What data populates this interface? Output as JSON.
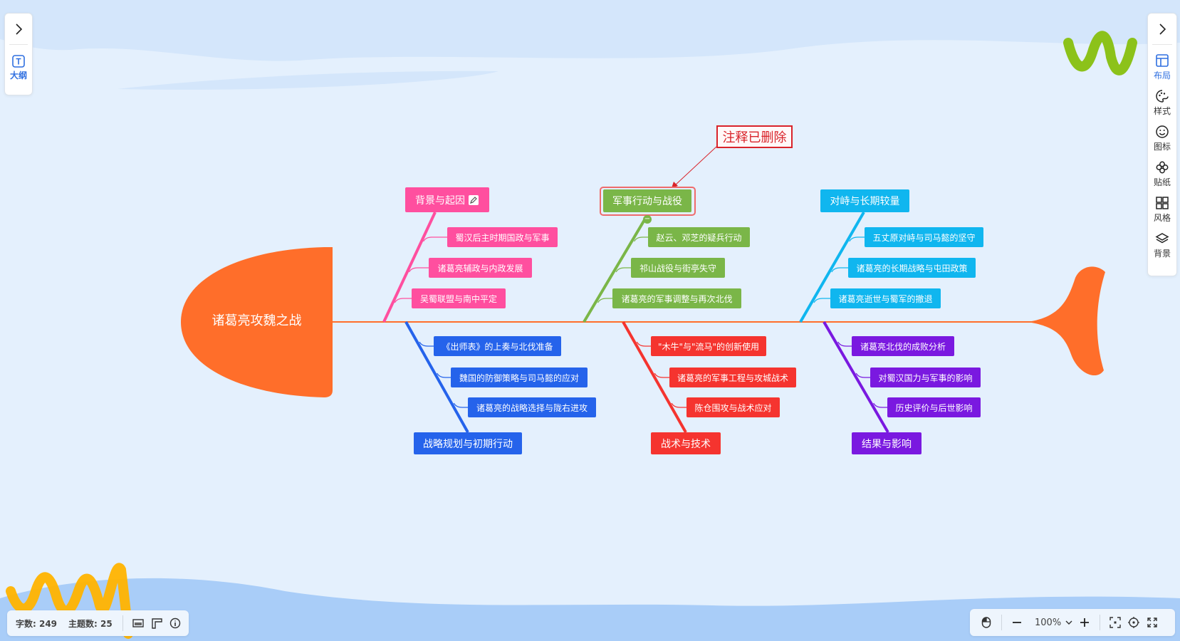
{
  "left_panel": {
    "expand_icon": "chevron-right-icon",
    "outline_label": "大纲",
    "outline_icon": "text-box-icon"
  },
  "right_panel": {
    "expand_icon": "chevron-right-icon",
    "items": [
      {
        "label": "布局",
        "icon": "layout-icon",
        "active": true
      },
      {
        "label": "样式",
        "icon": "palette-icon"
      },
      {
        "label": "图标",
        "icon": "smile-icon"
      },
      {
        "label": "贴纸",
        "icon": "flower-icon"
      },
      {
        "label": "风格",
        "icon": "grid-icon"
      },
      {
        "label": "背景",
        "icon": "layers-icon"
      }
    ]
  },
  "mindmap": {
    "root": "诸葛亮攻魏之战",
    "root_color": "#ff6e2a",
    "annotation": "注释已删除",
    "branches": [
      {
        "title": "背景与起因",
        "color": "#ff4f9f",
        "has_note_icon": true,
        "children": [
          "蜀汉后主时期国政与军事",
          "诸葛亮辅政与内政发展",
          "吴蜀联盟与南中平定"
        ]
      },
      {
        "title": "军事行动与战役",
        "color": "#7ab648",
        "selected": true,
        "children": [
          "赵云、邓芝的疑兵行动",
          "祁山战役与街亭失守",
          "诸葛亮的军事调整与再次北伐"
        ]
      },
      {
        "title": "对峙与长期较量",
        "color": "#10b6ef",
        "children": [
          "五丈原对峙与司马懿的坚守",
          "诸葛亮的长期战略与屯田政策",
          "诸葛亮逝世与蜀军的撤退"
        ]
      },
      {
        "title": "战略规划与初期行动",
        "color": "#2563eb",
        "children": [
          "《出师表》的上奏与北伐准备",
          "魏国的防御策略与司马懿的应对",
          "诸葛亮的战略选择与陇右进攻"
        ]
      },
      {
        "title": "战术与技术",
        "color": "#f5342f",
        "children": [
          "\"木牛\"与\"流马\"的创新使用",
          "诸葛亮的军事工程与攻城战术",
          "陈仓围攻与战术应对"
        ]
      },
      {
        "title": "结果与影响",
        "color": "#7a19e0",
        "children": [
          "诸葛亮北伐的成败分析",
          "对蜀汉国力与军事的影响",
          "历史评价与后世影响"
        ]
      }
    ]
  },
  "status": {
    "word_count": "字数: 249",
    "topic_count": "主题数: 25"
  },
  "zoom": {
    "level": "100%"
  }
}
